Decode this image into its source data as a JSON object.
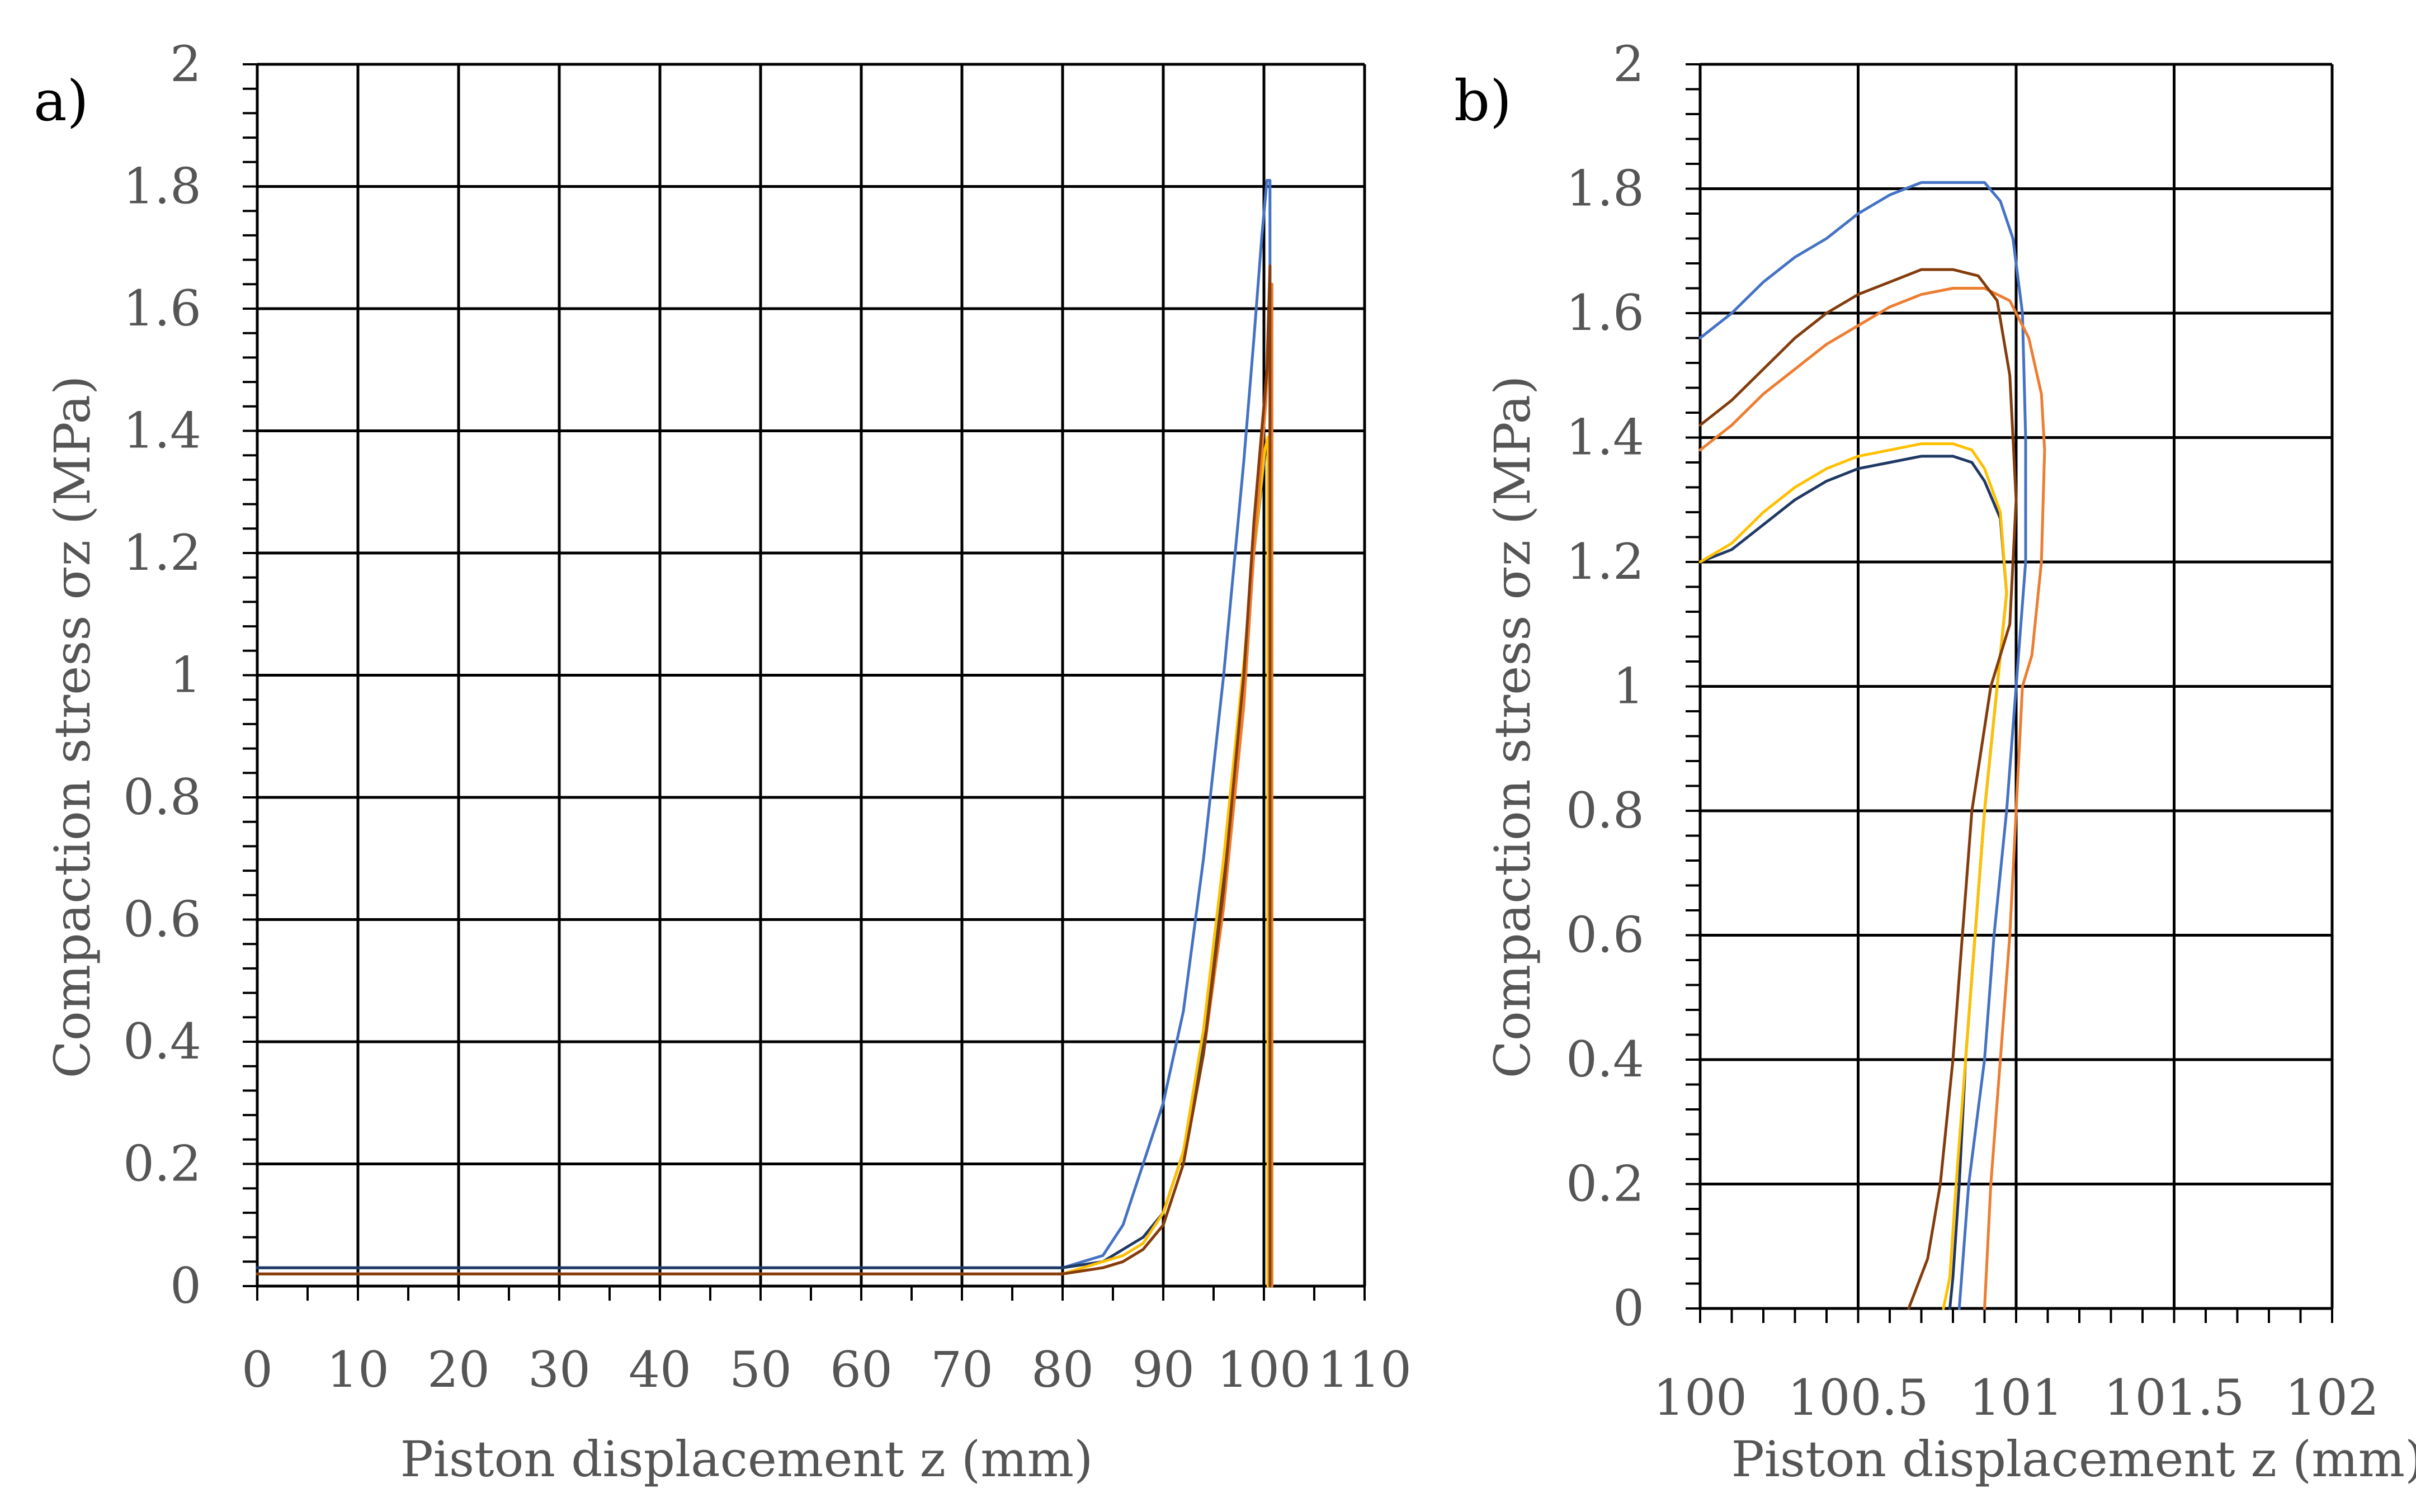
{
  "chart_data": [
    {
      "panel": "a)",
      "type": "line",
      "xlabel": "Piston displacement z (mm)",
      "ylabel": "Compaction stress σz (MPa)",
      "xlim": [
        0,
        110
      ],
      "ylim": [
        0,
        2
      ],
      "xticks": [
        "0",
        "10",
        "20",
        "30",
        "40",
        "50",
        "60",
        "70",
        "80",
        "90",
        "100",
        "110"
      ],
      "yticks": [
        "0",
        "0.2",
        "0.4",
        "0.6",
        "0.8",
        "1",
        "1.2",
        "1.4",
        "1.6",
        "1.8",
        "2"
      ],
      "grid": true,
      "series": [
        {
          "name": "blue",
          "color": "#4472C4",
          "x": [
            0,
            10,
            20,
            30,
            40,
            50,
            60,
            70,
            80,
            84,
            86,
            88,
            90,
            92,
            94,
            96,
            98,
            99,
            99.8,
            100.3,
            100.6,
            100.6
          ],
          "y": [
            0.03,
            0.03,
            0.03,
            0.03,
            0.03,
            0.03,
            0.03,
            0.03,
            0.03,
            0.05,
            0.1,
            0.2,
            0.3,
            0.45,
            0.7,
            1.0,
            1.35,
            1.55,
            1.72,
            1.81,
            1.81,
            0
          ]
        },
        {
          "name": "dark-navy",
          "color": "#1F3864",
          "x": [
            0,
            10,
            20,
            30,
            40,
            50,
            60,
            70,
            80,
            84,
            86,
            88,
            90,
            92,
            94,
            96,
            98,
            99,
            100.1,
            100.4,
            100.4
          ],
          "y": [
            0.03,
            0.03,
            0.03,
            0.03,
            0.03,
            0.03,
            0.03,
            0.03,
            0.03,
            0.04,
            0.06,
            0.08,
            0.12,
            0.22,
            0.4,
            0.68,
            1.0,
            1.2,
            1.36,
            1.37,
            0
          ]
        },
        {
          "name": "yellow",
          "color": "#FFC000",
          "x": [
            0,
            10,
            20,
            30,
            40,
            50,
            60,
            70,
            80,
            84,
            86,
            88,
            90,
            92,
            94,
            96,
            98,
            99,
            100.1,
            100.4,
            100.4
          ],
          "y": [
            0.02,
            0.02,
            0.02,
            0.02,
            0.02,
            0.02,
            0.02,
            0.02,
            0.02,
            0.04,
            0.05,
            0.07,
            0.12,
            0.22,
            0.42,
            0.7,
            1.02,
            1.2,
            1.37,
            1.39,
            0
          ]
        },
        {
          "name": "orange",
          "color": "#ED7D31",
          "x": [
            0,
            10,
            20,
            30,
            40,
            50,
            60,
            70,
            80,
            84,
            86,
            88,
            90,
            92,
            94,
            96,
            98,
            99,
            100.2,
            100.8,
            100.8
          ],
          "y": [
            0.02,
            0.02,
            0.02,
            0.02,
            0.02,
            0.02,
            0.02,
            0.02,
            0.02,
            0.03,
            0.04,
            0.06,
            0.1,
            0.2,
            0.38,
            0.62,
            0.95,
            1.2,
            1.45,
            1.64,
            0
          ]
        },
        {
          "name": "brown",
          "color": "#843C0C",
          "x": [
            0,
            10,
            20,
            30,
            40,
            50,
            60,
            70,
            80,
            84,
            86,
            88,
            90,
            92,
            94,
            96,
            98,
            99,
            100.3,
            100.6,
            100.6
          ],
          "y": [
            0.02,
            0.02,
            0.02,
            0.02,
            0.02,
            0.02,
            0.02,
            0.02,
            0.02,
            0.03,
            0.04,
            0.06,
            0.1,
            0.2,
            0.38,
            0.65,
            1.0,
            1.25,
            1.5,
            1.67,
            0
          ]
        }
      ]
    },
    {
      "panel": "b)",
      "type": "line",
      "xlabel": "Piston displacement z (mm)",
      "ylabel": "Compaction stress σz (MPa)",
      "xlim": [
        100,
        102
      ],
      "ylim": [
        0,
        2
      ],
      "xticks": [
        "100",
        "100.5",
        "101",
        "101.5",
        "102"
      ],
      "yticks": [
        "0",
        "0.2",
        "0.4",
        "0.6",
        "0.8",
        "1",
        "1.2",
        "1.4",
        "1.6",
        "1.8",
        "2"
      ],
      "grid": true,
      "series": [
        {
          "name": "blue",
          "color": "#4472C4",
          "x": [
            100,
            100.1,
            100.2,
            100.3,
            100.4,
            100.5,
            100.6,
            100.7,
            100.8,
            100.9,
            100.95,
            100.99,
            101.02,
            101.03,
            101.03,
            101.0,
            100.97,
            100.93,
            100.9,
            100.85,
            100.82
          ],
          "y": [
            1.56,
            1.6,
            1.65,
            1.69,
            1.72,
            1.76,
            1.79,
            1.81,
            1.81,
            1.81,
            1.78,
            1.72,
            1.6,
            1.4,
            1.2,
            1.0,
            0.8,
            0.6,
            0.4,
            0.2,
            0
          ]
        },
        {
          "name": "dark-navy",
          "color": "#1F3864",
          "x": [
            100,
            100.1,
            100.2,
            100.3,
            100.4,
            100.5,
            100.6,
            100.7,
            100.8,
            100.86,
            100.9,
            100.95,
            100.97,
            100.94,
            100.9,
            100.87,
            100.84,
            100.82,
            100.8,
            100.79
          ],
          "y": [
            1.2,
            1.22,
            1.26,
            1.3,
            1.33,
            1.35,
            1.36,
            1.37,
            1.37,
            1.36,
            1.33,
            1.27,
            1.15,
            1.0,
            0.8,
            0.6,
            0.4,
            0.2,
            0.05,
            0
          ]
        },
        {
          "name": "yellow",
          "color": "#FFC000",
          "x": [
            100,
            100.1,
            100.2,
            100.3,
            100.4,
            100.5,
            100.6,
            100.7,
            100.8,
            100.86,
            100.9,
            100.95,
            100.97,
            100.94,
            100.9,
            100.87,
            100.84,
            100.81,
            100.79,
            100.77
          ],
          "y": [
            1.2,
            1.23,
            1.28,
            1.32,
            1.35,
            1.37,
            1.38,
            1.39,
            1.39,
            1.38,
            1.35,
            1.28,
            1.15,
            1.0,
            0.8,
            0.6,
            0.4,
            0.2,
            0.05,
            0
          ]
        },
        {
          "name": "orange",
          "color": "#ED7D31",
          "x": [
            100,
            100.1,
            100.2,
            100.3,
            100.4,
            100.5,
            100.6,
            100.7,
            100.8,
            100.9,
            100.98,
            101.04,
            101.08,
            101.09,
            101.08,
            101.05,
            101.02,
            101.0,
            100.98,
            100.95,
            100.92,
            100.9
          ],
          "y": [
            1.38,
            1.42,
            1.47,
            1.51,
            1.55,
            1.58,
            1.61,
            1.63,
            1.64,
            1.64,
            1.62,
            1.56,
            1.47,
            1.38,
            1.2,
            1.05,
            1.0,
            0.8,
            0.6,
            0.4,
            0.2,
            0
          ]
        },
        {
          "name": "brown",
          "color": "#843C0C",
          "x": [
            100,
            100.1,
            100.2,
            100.3,
            100.4,
            100.5,
            100.6,
            100.7,
            100.8,
            100.88,
            100.94,
            100.98,
            101.0,
            100.98,
            100.92,
            100.86,
            100.83,
            100.8,
            100.76,
            100.72,
            100.66
          ],
          "y": [
            1.42,
            1.46,
            1.51,
            1.56,
            1.6,
            1.63,
            1.65,
            1.67,
            1.67,
            1.66,
            1.62,
            1.5,
            1.3,
            1.1,
            1.0,
            0.8,
            0.6,
            0.4,
            0.2,
            0.08,
            0
          ]
        }
      ]
    }
  ]
}
